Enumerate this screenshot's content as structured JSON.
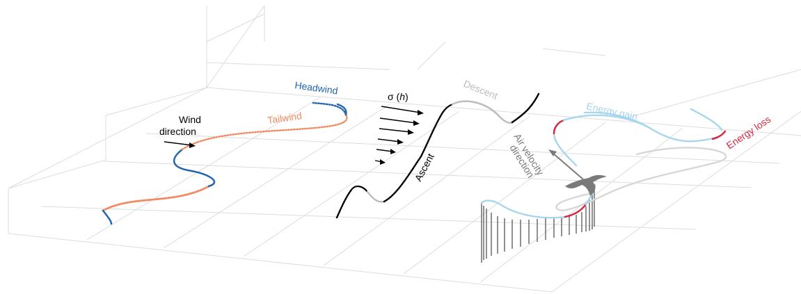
{
  "labels": {
    "wind_line1": "Wind",
    "wind_line2": "direction",
    "headwind": "Headwind",
    "tailwind": "Tailwind",
    "sigma_symbol": "σ (",
    "sigma_var": "h",
    "sigma_close": ")",
    "descent": "Descent",
    "ascent": "Ascent",
    "air_line1": "Air velocity",
    "air_line2": "direction",
    "energy_gain": "Energy gain",
    "energy_loss": "Energy loss"
  },
  "colors": {
    "headwind": "#2166ac",
    "tailwind": "#ef8a62",
    "energy_gain": "#a6d5ee",
    "energy_loss": "#d6283f",
    "descent": "#bdbdbd",
    "ascent": "#000000",
    "grid": "#dcdcdc",
    "bird": "#7a7a7a"
  },
  "icons": {
    "bird": "bird-silhouette-icon",
    "wind_arrow": "arrow-right-icon",
    "air_velocity_arrow": "arrow-up-left-icon"
  }
}
